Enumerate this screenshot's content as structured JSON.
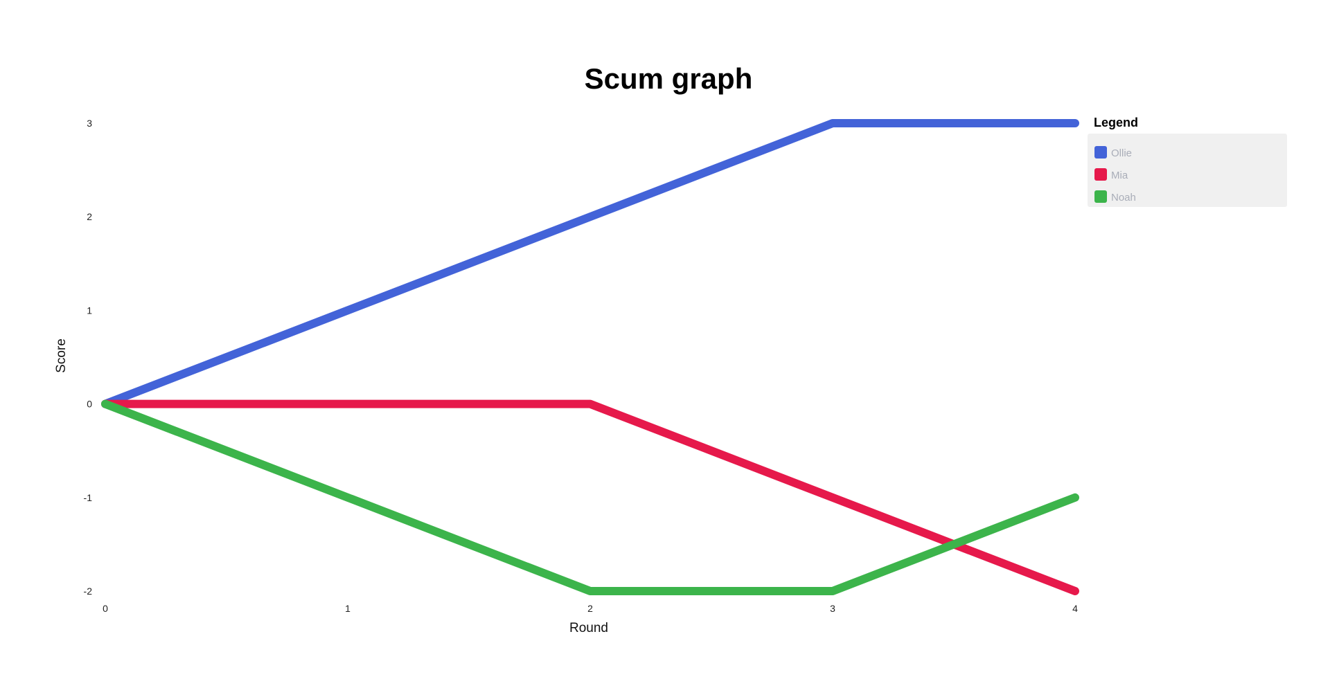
{
  "chart_data": {
    "type": "line",
    "title": "Scum graph",
    "xlabel": "Round",
    "ylabel": "Score",
    "x": [
      0,
      1,
      2,
      3,
      4
    ],
    "x_tick_labels": [
      "0",
      "1",
      "2",
      "3",
      "4"
    ],
    "y_tick_labels": [
      "3",
      "2",
      "1",
      "0",
      "-1",
      "-2"
    ],
    "xlim": [
      0,
      4
    ],
    "ylim": [
      -2,
      3
    ],
    "grid": false,
    "legend": {
      "title": "Legend",
      "placement": "top-right"
    },
    "series": [
      {
        "name": "Ollie",
        "color": "#4363d8",
        "values": [
          0,
          1,
          2,
          3,
          3
        ]
      },
      {
        "name": "Mia",
        "color": "#e6194b",
        "values": [
          0,
          0,
          0,
          -1,
          -2
        ]
      },
      {
        "name": "Noah",
        "color": "#3cb44b",
        "values": [
          0,
          -1,
          -2,
          -2,
          -1
        ]
      }
    ]
  }
}
